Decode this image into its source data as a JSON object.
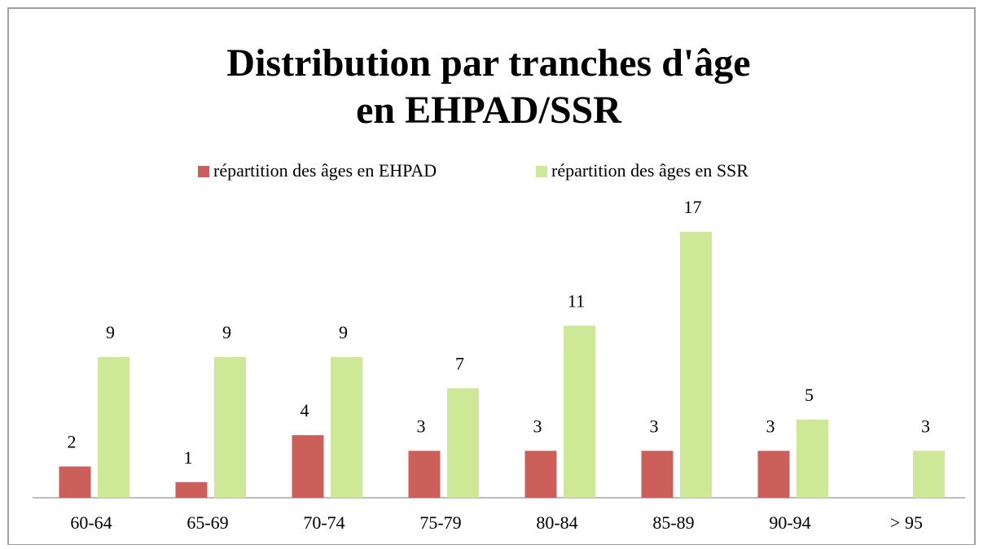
{
  "chart_data": {
    "type": "bar",
    "title": [
      "Distribution par tranches d'âge",
      "en EHPAD/SSR"
    ],
    "categories": [
      "60-64",
      "65-69",
      "70-74",
      "75-79",
      "80-84",
      "85-89",
      "90-94",
      "> 95"
    ],
    "series": [
      {
        "name": "répartition des âges en EHPAD",
        "color": "#cd5f5a",
        "values": [
          2,
          1,
          4,
          3,
          3,
          3,
          3,
          null
        ]
      },
      {
        "name": "répartition des âges en SSR",
        "color": "#cde896",
        "values": [
          9,
          9,
          9,
          7,
          11,
          17,
          5,
          3
        ]
      }
    ],
    "legend": "top"
  }
}
